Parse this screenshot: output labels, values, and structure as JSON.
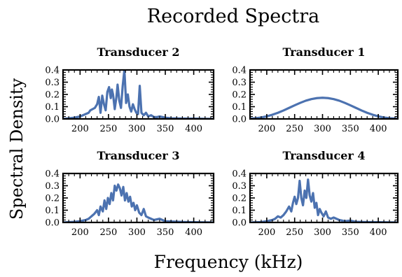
{
  "figure": {
    "title": "Recorded Spectra",
    "xlabel": "Frequency (kHz)",
    "ylabel": "Spectral Density",
    "line_color": "#4c72b0"
  },
  "chart_data": [
    {
      "type": "line",
      "title": "Transducer 2",
      "xlim": [
        170,
        435
      ],
      "ylim": [
        0,
        0.4
      ],
      "xticks": [
        200,
        250,
        300,
        350,
        400
      ],
      "yticks": [
        0.0,
        0.1,
        0.2,
        0.3,
        0.4
      ],
      "x": [
        170,
        180,
        190,
        200,
        205,
        210,
        215,
        218,
        222,
        226,
        230,
        233,
        236,
        239,
        242,
        245,
        248,
        251,
        254,
        256,
        258,
        261,
        264,
        266,
        269,
        272,
        275,
        278,
        281,
        284,
        287,
        290,
        293,
        296,
        299,
        302,
        305,
        308,
        312,
        316,
        320,
        325,
        330,
        335,
        340,
        350,
        360,
        380,
        400,
        420,
        435
      ],
      "y": [
        0,
        0.005,
        0.01,
        0.02,
        0.03,
        0.04,
        0.05,
        0.07,
        0.08,
        0.09,
        0.12,
        0.18,
        0.05,
        0.19,
        0.12,
        0.07,
        0.22,
        0.26,
        0.17,
        0.24,
        0.2,
        0.08,
        0.18,
        0.28,
        0.15,
        0.09,
        0.27,
        0.4,
        0.13,
        0.2,
        0.1,
        0.06,
        0.12,
        0.08,
        0.05,
        0.04,
        0.27,
        0.05,
        0.03,
        0.05,
        0.02,
        0.03,
        0.015,
        0.015,
        0.02,
        0.01,
        0.005,
        0.003,
        0.002,
        0.001,
        0
      ]
    },
    {
      "type": "line",
      "title": "Transducer 1",
      "xlim": [
        170,
        435
      ],
      "ylim": [
        0,
        0.4
      ],
      "xticks": [
        200,
        250,
        300,
        350,
        400
      ],
      "yticks": [
        0.0,
        0.1,
        0.2,
        0.3,
        0.4
      ],
      "x": [
        170,
        180,
        190,
        200,
        210,
        220,
        230,
        240,
        250,
        260,
        270,
        280,
        290,
        300,
        310,
        320,
        330,
        340,
        350,
        360,
        370,
        380,
        390,
        400,
        410,
        420,
        435
      ],
      "y": [
        0.002,
        0.006,
        0.012,
        0.021,
        0.034,
        0.05,
        0.069,
        0.09,
        0.111,
        0.131,
        0.149,
        0.162,
        0.17,
        0.173,
        0.17,
        0.162,
        0.149,
        0.131,
        0.111,
        0.09,
        0.069,
        0.05,
        0.034,
        0.021,
        0.012,
        0.006,
        0.002
      ]
    },
    {
      "type": "line",
      "title": "Transducer 3",
      "xlim": [
        170,
        435
      ],
      "ylim": [
        0,
        0.4
      ],
      "xticks": [
        200,
        250,
        300,
        350,
        400
      ],
      "yticks": [
        0.0,
        0.1,
        0.2,
        0.3,
        0.4
      ],
      "x": [
        170,
        190,
        200,
        210,
        215,
        220,
        225,
        230,
        233,
        236,
        240,
        243,
        246,
        249,
        252,
        255,
        258,
        261,
        264,
        267,
        270,
        273,
        276,
        279,
        282,
        285,
        288,
        291,
        294,
        297,
        300,
        304,
        308,
        312,
        316,
        320,
        330,
        340,
        350,
        360,
        380,
        400,
        420,
        435
      ],
      "y": [
        0,
        0.005,
        0.01,
        0.02,
        0.03,
        0.05,
        0.07,
        0.1,
        0.06,
        0.13,
        0.09,
        0.18,
        0.11,
        0.2,
        0.15,
        0.24,
        0.18,
        0.3,
        0.26,
        0.31,
        0.28,
        0.22,
        0.29,
        0.18,
        0.24,
        0.17,
        0.21,
        0.13,
        0.16,
        0.1,
        0.14,
        0.08,
        0.06,
        0.11,
        0.05,
        0.04,
        0.02,
        0.03,
        0.01,
        0.008,
        0.004,
        0.002,
        0.001,
        0
      ]
    },
    {
      "type": "line",
      "title": "Transducer 4",
      "xlim": [
        170,
        435
      ],
      "ylim": [
        0,
        0.4
      ],
      "xticks": [
        200,
        250,
        300,
        350,
        400
      ],
      "yticks": [
        0.0,
        0.1,
        0.2,
        0.3,
        0.4
      ],
      "x": [
        170,
        190,
        200,
        210,
        215,
        220,
        225,
        230,
        235,
        240,
        244,
        247,
        250,
        253,
        256,
        259,
        262,
        265,
        268,
        271,
        274,
        277,
        280,
        283,
        286,
        289,
        292,
        295,
        298,
        302,
        306,
        310,
        315,
        320,
        330,
        340,
        350,
        360,
        380,
        400,
        420,
        435
      ],
      "y": [
        0,
        0.003,
        0.01,
        0.02,
        0.03,
        0.05,
        0.04,
        0.06,
        0.09,
        0.13,
        0.09,
        0.16,
        0.21,
        0.15,
        0.2,
        0.34,
        0.2,
        0.14,
        0.26,
        0.2,
        0.35,
        0.22,
        0.17,
        0.24,
        0.12,
        0.16,
        0.06,
        0.11,
        0.08,
        0.05,
        0.09,
        0.04,
        0.03,
        0.04,
        0.02,
        0.01,
        0.015,
        0.005,
        0.003,
        0.002,
        0.001,
        0
      ]
    }
  ]
}
